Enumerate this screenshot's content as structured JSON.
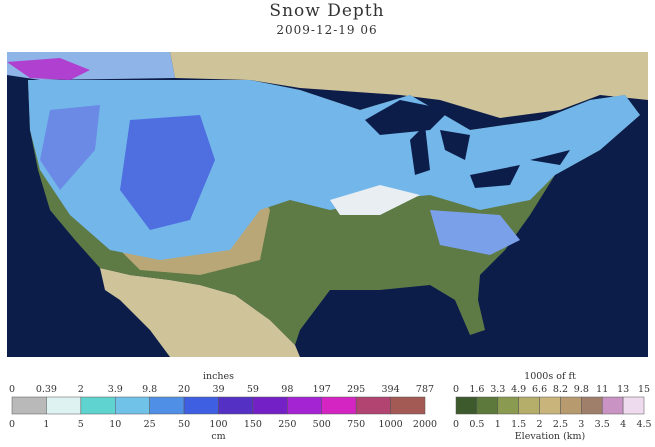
{
  "title": "Snow Depth",
  "subtitle": "2009-12-19 06",
  "snow_legend": {
    "top_label": "inches",
    "top_ticks": [
      "0",
      "0.39",
      "2",
      "3.9",
      "9.8",
      "20",
      "39",
      "59",
      "98",
      "197",
      "295",
      "394",
      "787"
    ],
    "bottom_ticks": [
      "0",
      "1",
      "5",
      "10",
      "25",
      "50",
      "100",
      "150",
      "250",
      "500",
      "750",
      "1000",
      "2000"
    ],
    "bottom_label": "cm",
    "colors": [
      "#b9b9b9",
      "#dff2f2",
      "#5fd3cf",
      "#71c2e8",
      "#4f8fe6",
      "#3f5fe2",
      "#5431c4",
      "#7321c6",
      "#a423d2",
      "#d425c2",
      "#b24472",
      "#a35a55"
    ]
  },
  "elevation_legend": {
    "top_label": "1000s of ft",
    "top_ticks": [
      "0",
      "1.6",
      "3.3",
      "4.9",
      "6.6",
      "8.2",
      "9.8",
      "11",
      "13",
      "15"
    ],
    "bottom_ticks": [
      "0",
      "0.5",
      "1",
      "1.5",
      "2",
      "2.5",
      "3",
      "3.5",
      "4",
      "4.5"
    ],
    "bottom_label": "Elevation (km)",
    "colors": [
      "#3c5a2c",
      "#5d7a3c",
      "#8a9a50",
      "#b5ad6a",
      "#c9b57c",
      "#b79a6e",
      "#a07f6a",
      "#c994c4",
      "#eedcee"
    ]
  }
}
